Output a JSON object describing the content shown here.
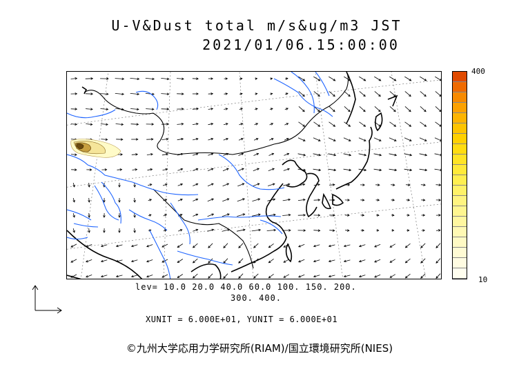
{
  "title": {
    "line1": "U-V&Dust total m/s&ug/m3 JST",
    "line2": "2021/01/06.15:00:00"
  },
  "map": {
    "region": "East Asia",
    "coastline_color": "#000000",
    "river_color": "#1e64ff",
    "dust_plume_colors": [
      "#fffbc8",
      "#f5e59a",
      "#c8a040",
      "#6b4a10"
    ]
  },
  "colorbar": {
    "max_label": "400",
    "min_label": "10",
    "colors": [
      "#e04a00",
      "#ef6a00",
      "#f78a00",
      "#fca100",
      "#fdb400",
      "#fec400",
      "#ffd000",
      "#ffdc10",
      "#ffe425",
      "#ffea3a",
      "#ffef50",
      "#fff268",
      "#fff480",
      "#fff690",
      "#fff7a0",
      "#fff9b4",
      "#fffac4",
      "#fffbd4",
      "#fffce2",
      "#fffeef"
    ]
  },
  "levels": {
    "line1": "lev= 10.0 20.0 40.0 60.0 100. 150. 200.",
    "line2": "300. 400."
  },
  "units": {
    "line": "XUNIT = 6.000E+01, YUNIT = 6.000E+01"
  },
  "copyright": "©九州大学応用力学研究所(RIAM)/国立環境研究所(NIES)"
}
